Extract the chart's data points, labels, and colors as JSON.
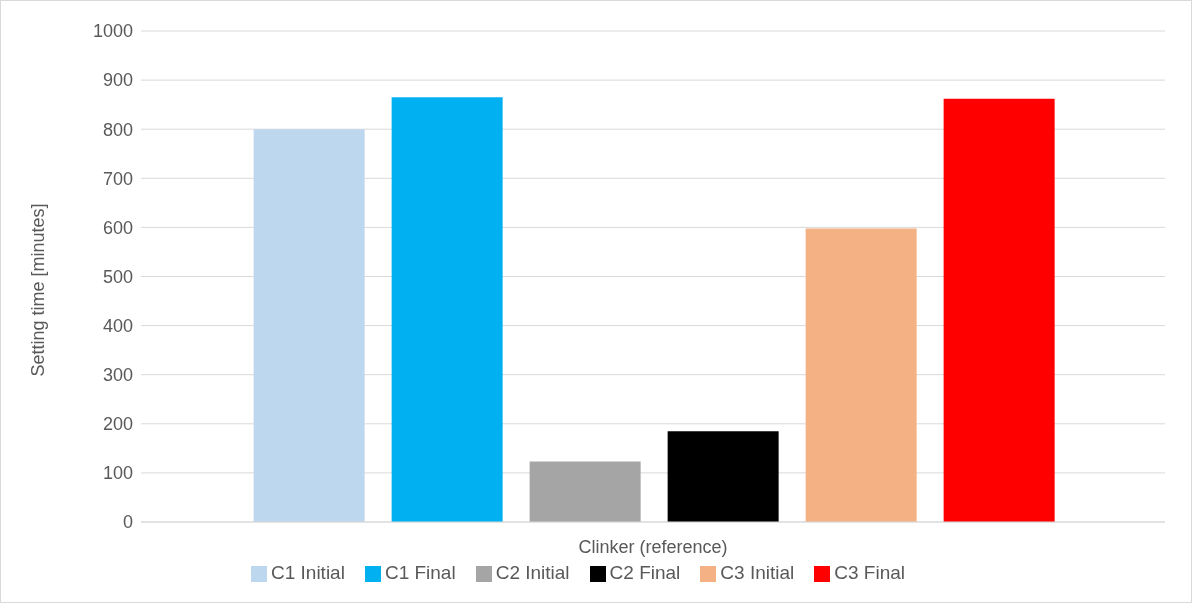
{
  "chart_data": {
    "type": "bar",
    "ylabel": "Setting time [minutes]",
    "categories": [
      "Clinker (reference)"
    ],
    "series": [
      {
        "name": "C1 Initial",
        "color": "#bdd7ee",
        "values": [
          800
        ]
      },
      {
        "name": "C1 Final",
        "color": "#00b0f0",
        "values": [
          865
        ]
      },
      {
        "name": "C2 Initial",
        "color": "#a5a5a5",
        "values": [
          123
        ]
      },
      {
        "name": "C2 Final",
        "color": "#000000",
        "values": [
          185
        ]
      },
      {
        "name": "C3 Initial",
        "color": "#f4b183",
        "values": [
          598
        ]
      },
      {
        "name": "C3 Final",
        "color": "#ff0000",
        "values": [
          862
        ]
      }
    ],
    "ylim": [
      0,
      1000
    ],
    "yticks": [
      0,
      100,
      200,
      300,
      400,
      500,
      600,
      700,
      800,
      900,
      1000
    ],
    "grid": "y",
    "legend": "bottom"
  }
}
